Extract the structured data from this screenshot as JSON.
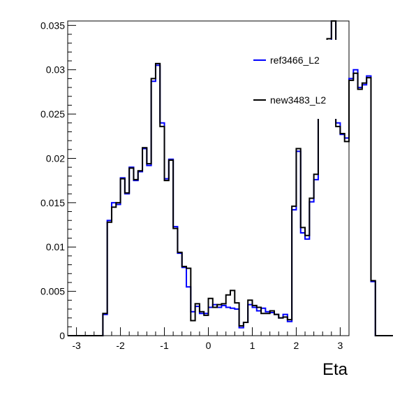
{
  "chart_data": {
    "type": "histogram",
    "xlabel": "Eta",
    "ylabel": "",
    "xlim": [
      -3.2,
      3.2
    ],
    "ylim": [
      0,
      0.0355
    ],
    "x_ticks": [
      -3,
      -2,
      -1,
      0,
      1,
      2,
      3
    ],
    "y_ticks": [
      0,
      0.005,
      0.01,
      0.015,
      0.02,
      0.025,
      0.03,
      0.035
    ],
    "x_tick_labels": [
      "-3",
      "-2",
      "-1",
      "0",
      "1",
      "2",
      "3"
    ],
    "y_tick_labels": [
      "0",
      "0.005",
      "0.01",
      "0.015",
      "0.02",
      "0.025",
      "0.03",
      "0.035"
    ],
    "bin_width": 0.1,
    "bin_edges_start": -3.2,
    "grid": false,
    "legend_position": "top-right",
    "series": [
      {
        "name": "ref3466_L2",
        "color": "#0000ff",
        "values": [
          0,
          0,
          0,
          0,
          0,
          0,
          0,
          0,
          0.0024,
          0.013,
          0.015,
          0.0148,
          0.0178,
          0.016,
          0.019,
          0.0175,
          0.0185,
          0.0211,
          0.0192,
          0.0287,
          0.0305,
          0.024,
          0.0177,
          0.0199,
          0.0123,
          0.0093,
          0.0077,
          0.0055,
          0.0027,
          0.0033,
          0.0025,
          0.0025,
          0.0032,
          0.0035,
          0.0032,
          0.0034,
          0.0032,
          0.0031,
          0.003,
          0.0009,
          0.0015,
          0.0035,
          0.0032,
          0.0028,
          0.0031,
          0.0027,
          0.0026,
          0.0024,
          0.002,
          0.0024,
          0.0016,
          0.0142,
          0.0208,
          0.0116,
          0.0109,
          0.0151,
          0.0176,
          0.0255,
          0.0279,
          0.029,
          0.0355,
          0.024,
          0.0227,
          0.0223,
          0.029,
          0.03,
          0.028,
          0.0283,
          0.0293,
          0.0061,
          0,
          0,
          0,
          0
        ]
      },
      {
        "name": "new3483_L2",
        "color": "#000000",
        "values": [
          0,
          0,
          0,
          0,
          0,
          0,
          0,
          0,
          0.0025,
          0.0128,
          0.0145,
          0.015,
          0.0177,
          0.0161,
          0.0189,
          0.0176,
          0.0186,
          0.0212,
          0.0194,
          0.029,
          0.0307,
          0.0236,
          0.0175,
          0.0198,
          0.0121,
          0.0094,
          0.0078,
          0.0076,
          0.0017,
          0.0036,
          0.0027,
          0.0023,
          0.0042,
          0.0032,
          0.0035,
          0.0036,
          0.0046,
          0.0051,
          0.0037,
          0.0011,
          0.0015,
          0.004,
          0.0034,
          0.0032,
          0.0025,
          0.0025,
          0.0028,
          0.0024,
          0.002,
          0.0021,
          0.0018,
          0.0146,
          0.0211,
          0.0122,
          0.0113,
          0.0155,
          0.0182,
          0.025,
          0.0294,
          0.0335,
          0.0355,
          0.0236,
          0.0228,
          0.0219,
          0.0288,
          0.0296,
          0.0278,
          0.0285,
          0.0291,
          0.0062,
          0,
          0,
          0,
          0
        ]
      }
    ]
  }
}
